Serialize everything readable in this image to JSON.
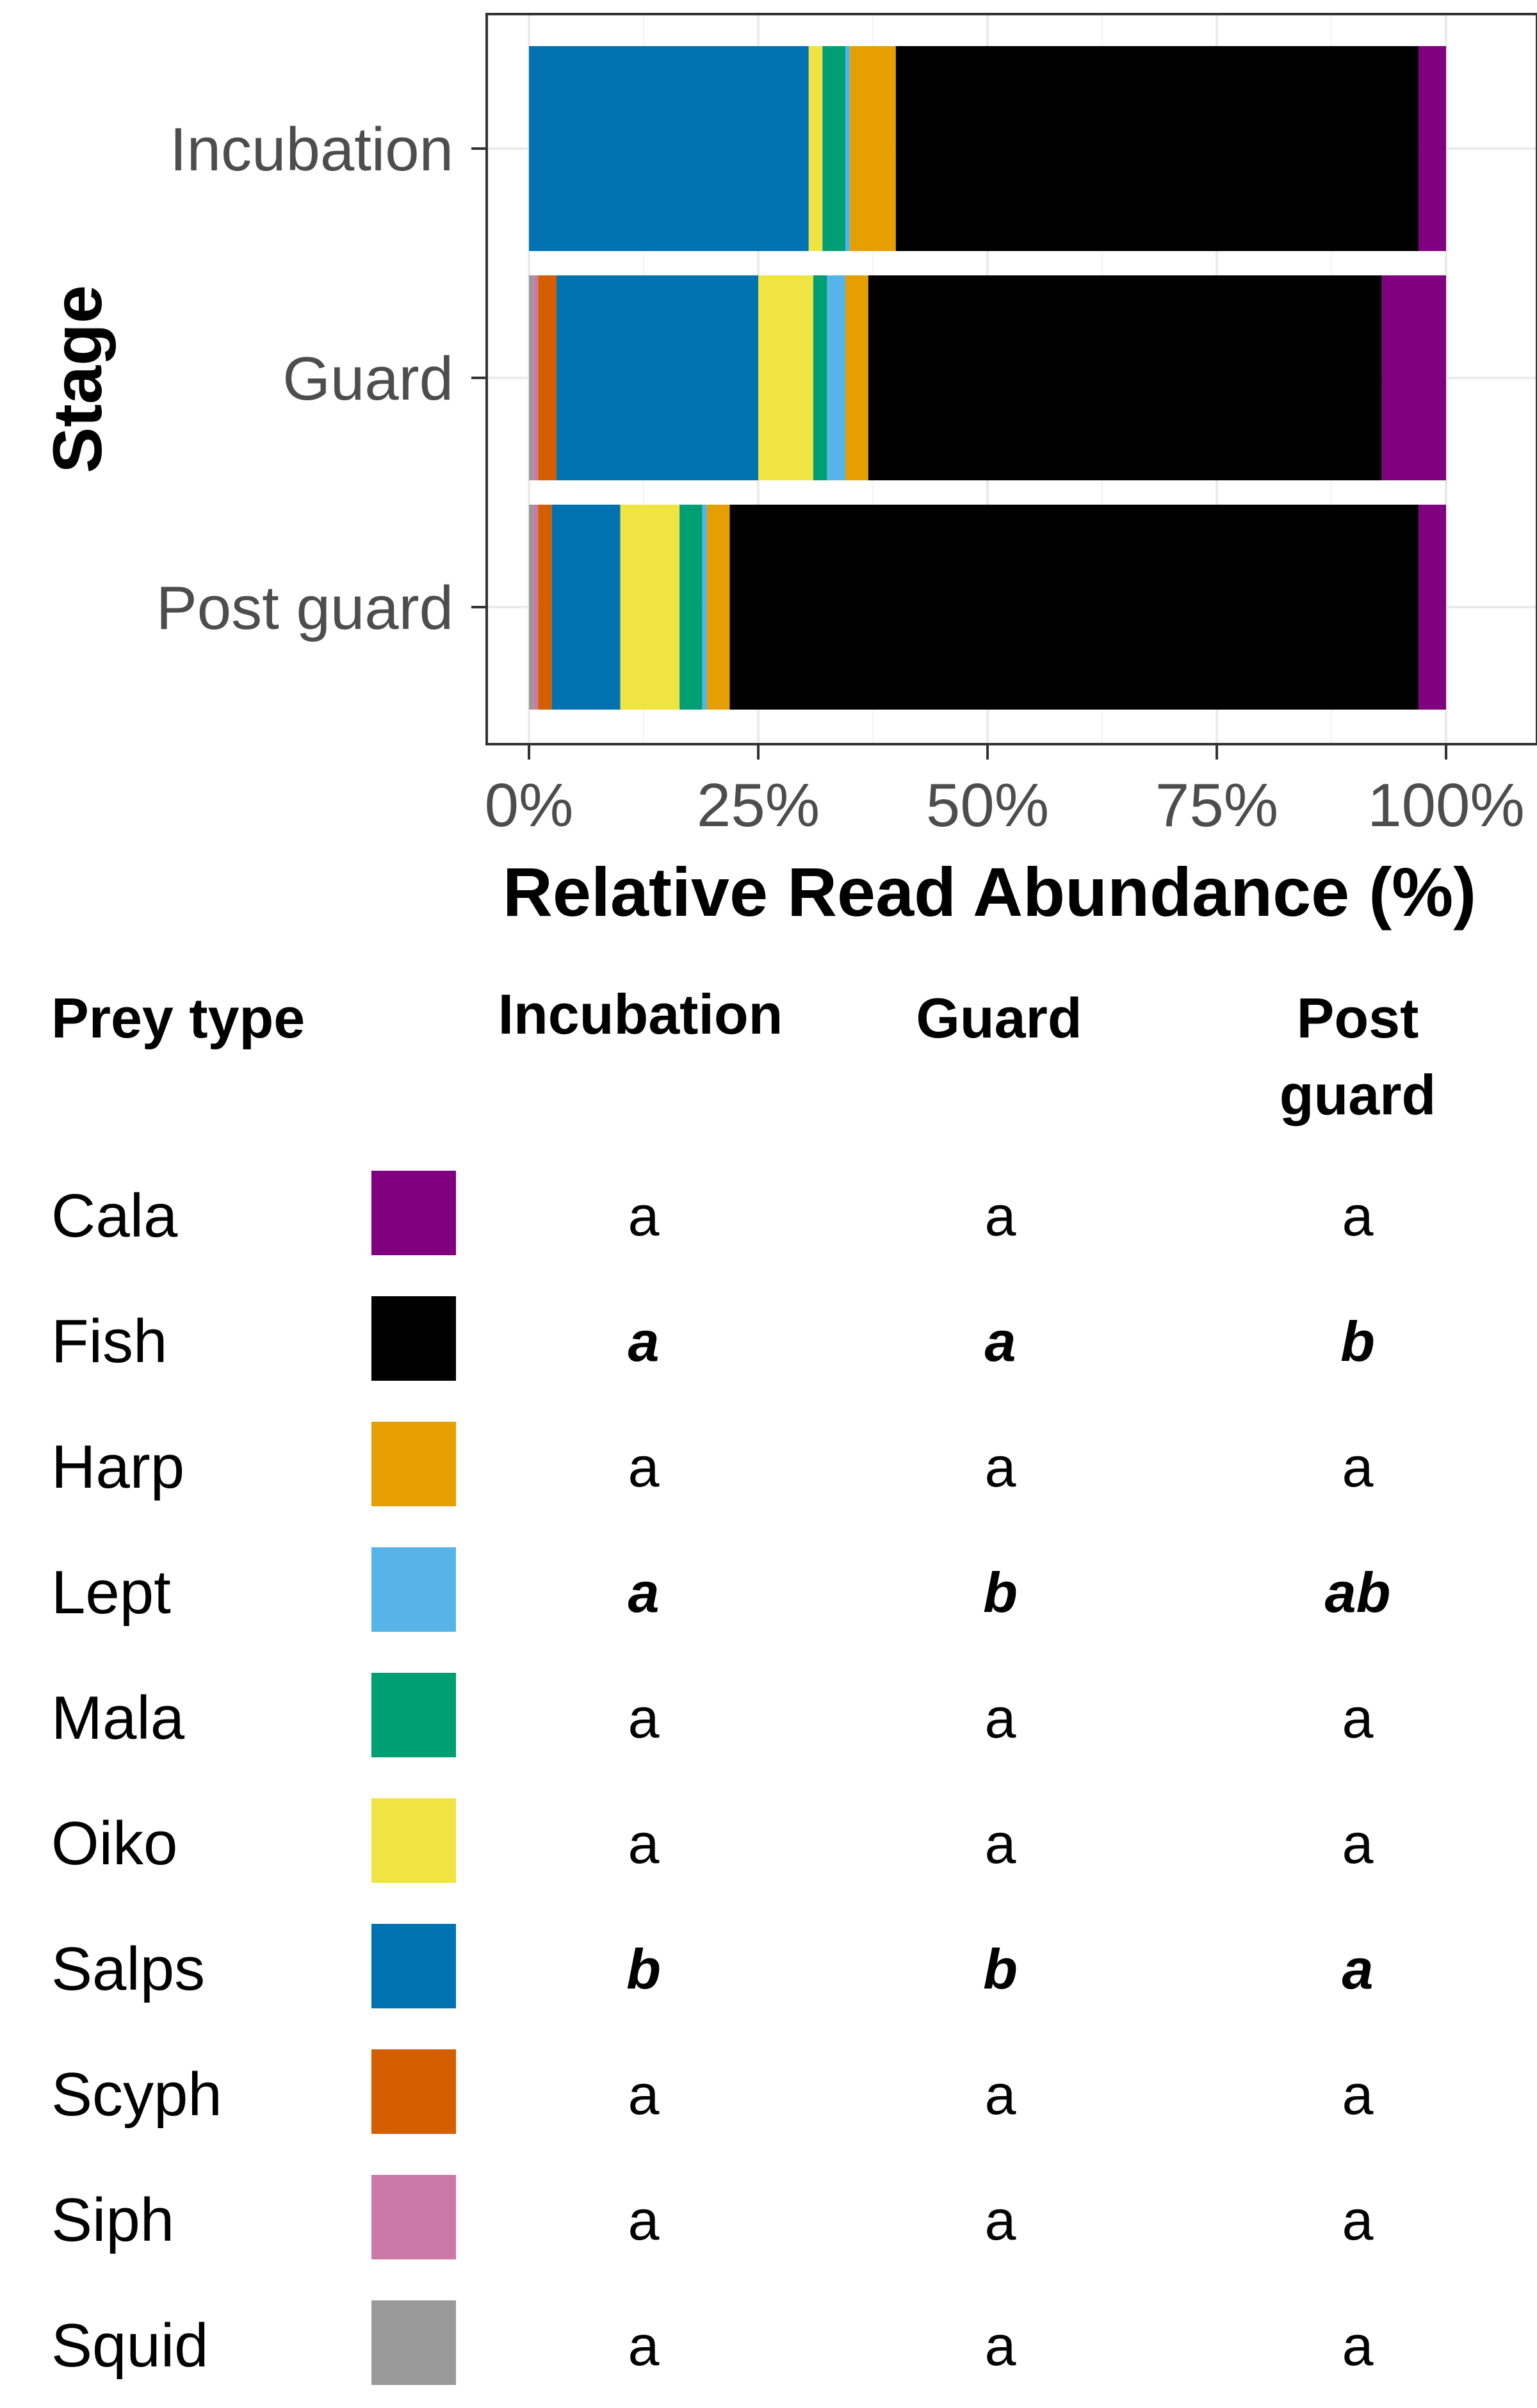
{
  "chart_data": {
    "type": "bar",
    "orientation": "horizontal",
    "stacked": true,
    "xlabel": "Relative Read Abundance (%)",
    "ylabel": "Stage",
    "xlim": [
      0,
      100
    ],
    "x_ticks": [
      "0%",
      "25%",
      "50%",
      "75%",
      "100%"
    ],
    "categories": [
      "Incubation",
      "Guard",
      "Post guard"
    ],
    "grid": true,
    "series": [
      {
        "name": "Squid",
        "color": "#999999",
        "values": [
          0,
          0.5,
          0.5
        ]
      },
      {
        "name": "Siph",
        "color": "#CC79A7",
        "values": [
          0,
          0.5,
          0.5
        ]
      },
      {
        "name": "Scyph",
        "color": "#D55E00",
        "values": [
          0,
          2,
          1.5
        ]
      },
      {
        "name": "Salps",
        "color": "#0072B2",
        "values": [
          30.5,
          22,
          7.5
        ]
      },
      {
        "name": "Oiko",
        "color": "#F0E442",
        "values": [
          1.5,
          6,
          6.5
        ]
      },
      {
        "name": "Mala",
        "color": "#009E73",
        "values": [
          2.5,
          1.5,
          2.5
        ]
      },
      {
        "name": "Lept",
        "color": "#56B4E9",
        "values": [
          0.5,
          2,
          0.5
        ]
      },
      {
        "name": "Harp",
        "color": "#E69F00",
        "values": [
          5,
          2.5,
          2.5
        ]
      },
      {
        "name": "Fish",
        "color": "#000000",
        "values": [
          57,
          56,
          75.5
        ]
      },
      {
        "name": "Cala",
        "color": "#800080",
        "values": [
          3,
          7,
          3
        ]
      }
    ]
  },
  "table": {
    "headers": {
      "prey": "Prey type",
      "incubation": "Incubation",
      "guard": "Guard",
      "post_line1": "Post",
      "post_line2": "guard"
    },
    "rows": [
      {
        "name": "Cala",
        "color": "#800080",
        "incubation": "a",
        "guard": "a",
        "post": "a",
        "emphasis": false
      },
      {
        "name": "Fish",
        "color": "#000000",
        "incubation": "a",
        "guard": "a",
        "post": "b",
        "emphasis": true
      },
      {
        "name": "Harp",
        "color": "#E69F00",
        "incubation": "a",
        "guard": "a",
        "post": "a",
        "emphasis": false
      },
      {
        "name": "Lept",
        "color": "#56B4E9",
        "incubation": "a",
        "guard": "b",
        "post": "ab",
        "emphasis": true
      },
      {
        "name": "Mala",
        "color": "#009E73",
        "incubation": "a",
        "guard": "a",
        "post": "a",
        "emphasis": false
      },
      {
        "name": "Oiko",
        "color": "#F0E442",
        "incubation": "a",
        "guard": "a",
        "post": "a",
        "emphasis": false
      },
      {
        "name": "Salps",
        "color": "#0072B2",
        "incubation": "b",
        "guard": "b",
        "post": "a",
        "emphasis": true
      },
      {
        "name": "Scyph",
        "color": "#D55E00",
        "incubation": "a",
        "guard": "a",
        "post": "a",
        "emphasis": false
      },
      {
        "name": "Siph",
        "color": "#CC79A7",
        "incubation": "a",
        "guard": "a",
        "post": "a",
        "emphasis": false
      },
      {
        "name": "Squid",
        "color": "#999999",
        "incubation": "a",
        "guard": "a",
        "post": "a",
        "emphasis": false
      }
    ]
  }
}
